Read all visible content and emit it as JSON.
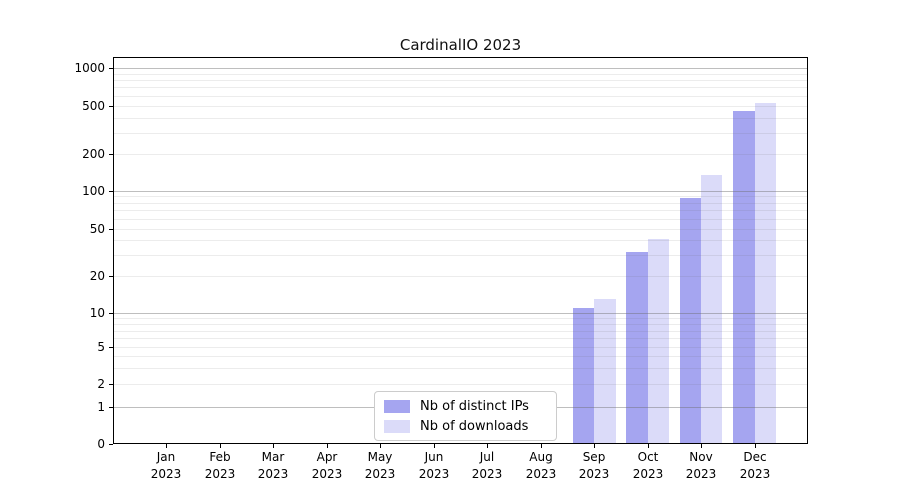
{
  "chart_data": {
    "type": "bar",
    "title": "CardinalIO 2023",
    "categories": [
      "Jan 2023",
      "Feb 2023",
      "Mar 2023",
      "Apr 2023",
      "May 2023",
      "Jun 2023",
      "Jul 2023",
      "Aug 2023",
      "Sep 2023",
      "Oct 2023",
      "Nov 2023",
      "Dec 2023"
    ],
    "series": [
      {
        "name": "Nb of distinct IPs",
        "color": "#a5a5f0",
        "values": [
          0,
          0,
          0,
          0,
          0,
          0,
          0,
          0,
          11,
          32,
          88,
          450
        ]
      },
      {
        "name": "Nb of downloads",
        "color": "#dbdbf9",
        "values": [
          0,
          0,
          0,
          0,
          0,
          0,
          0,
          0,
          13,
          41,
          135,
          530
        ]
      }
    ],
    "yscale": "symlog",
    "ylim": [
      0,
      1230
    ],
    "xlabel": "",
    "ylabel": "",
    "y_ticks": [
      0,
      1,
      2,
      5,
      10,
      20,
      50,
      100,
      200,
      500,
      1000
    ],
    "y_axis": {
      "anchors": {
        "0": 0.0,
        "1": 0.0956,
        "2": 0.155,
        "5": 0.2506,
        "10": 0.3385,
        "20": 0.4341,
        "50": 0.5566,
        "100": 0.6545,
        "200": 0.75,
        "500": 0.8737,
        "1000": 0.9716
      },
      "major_gridlines": [
        1,
        10,
        100,
        1000
      ],
      "minor_gridlines": [
        2,
        3,
        4,
        5,
        6,
        7,
        8,
        9,
        20,
        30,
        40,
        50,
        60,
        70,
        80,
        90,
        200,
        300,
        400,
        500,
        600,
        700,
        800,
        900
      ]
    },
    "grid": "horizontal",
    "legend": {
      "position": "lower center",
      "labels": [
        "Nb of distinct IPs",
        "Nb of downloads"
      ]
    },
    "colors": {
      "background": "#ffffff",
      "spine": "#000000",
      "major_grid": "rgba(110,110,110,0.45)",
      "minor_grid": "rgba(110,110,110,0.13)",
      "legend_border": "#cccccc",
      "text": "#000000"
    }
  }
}
